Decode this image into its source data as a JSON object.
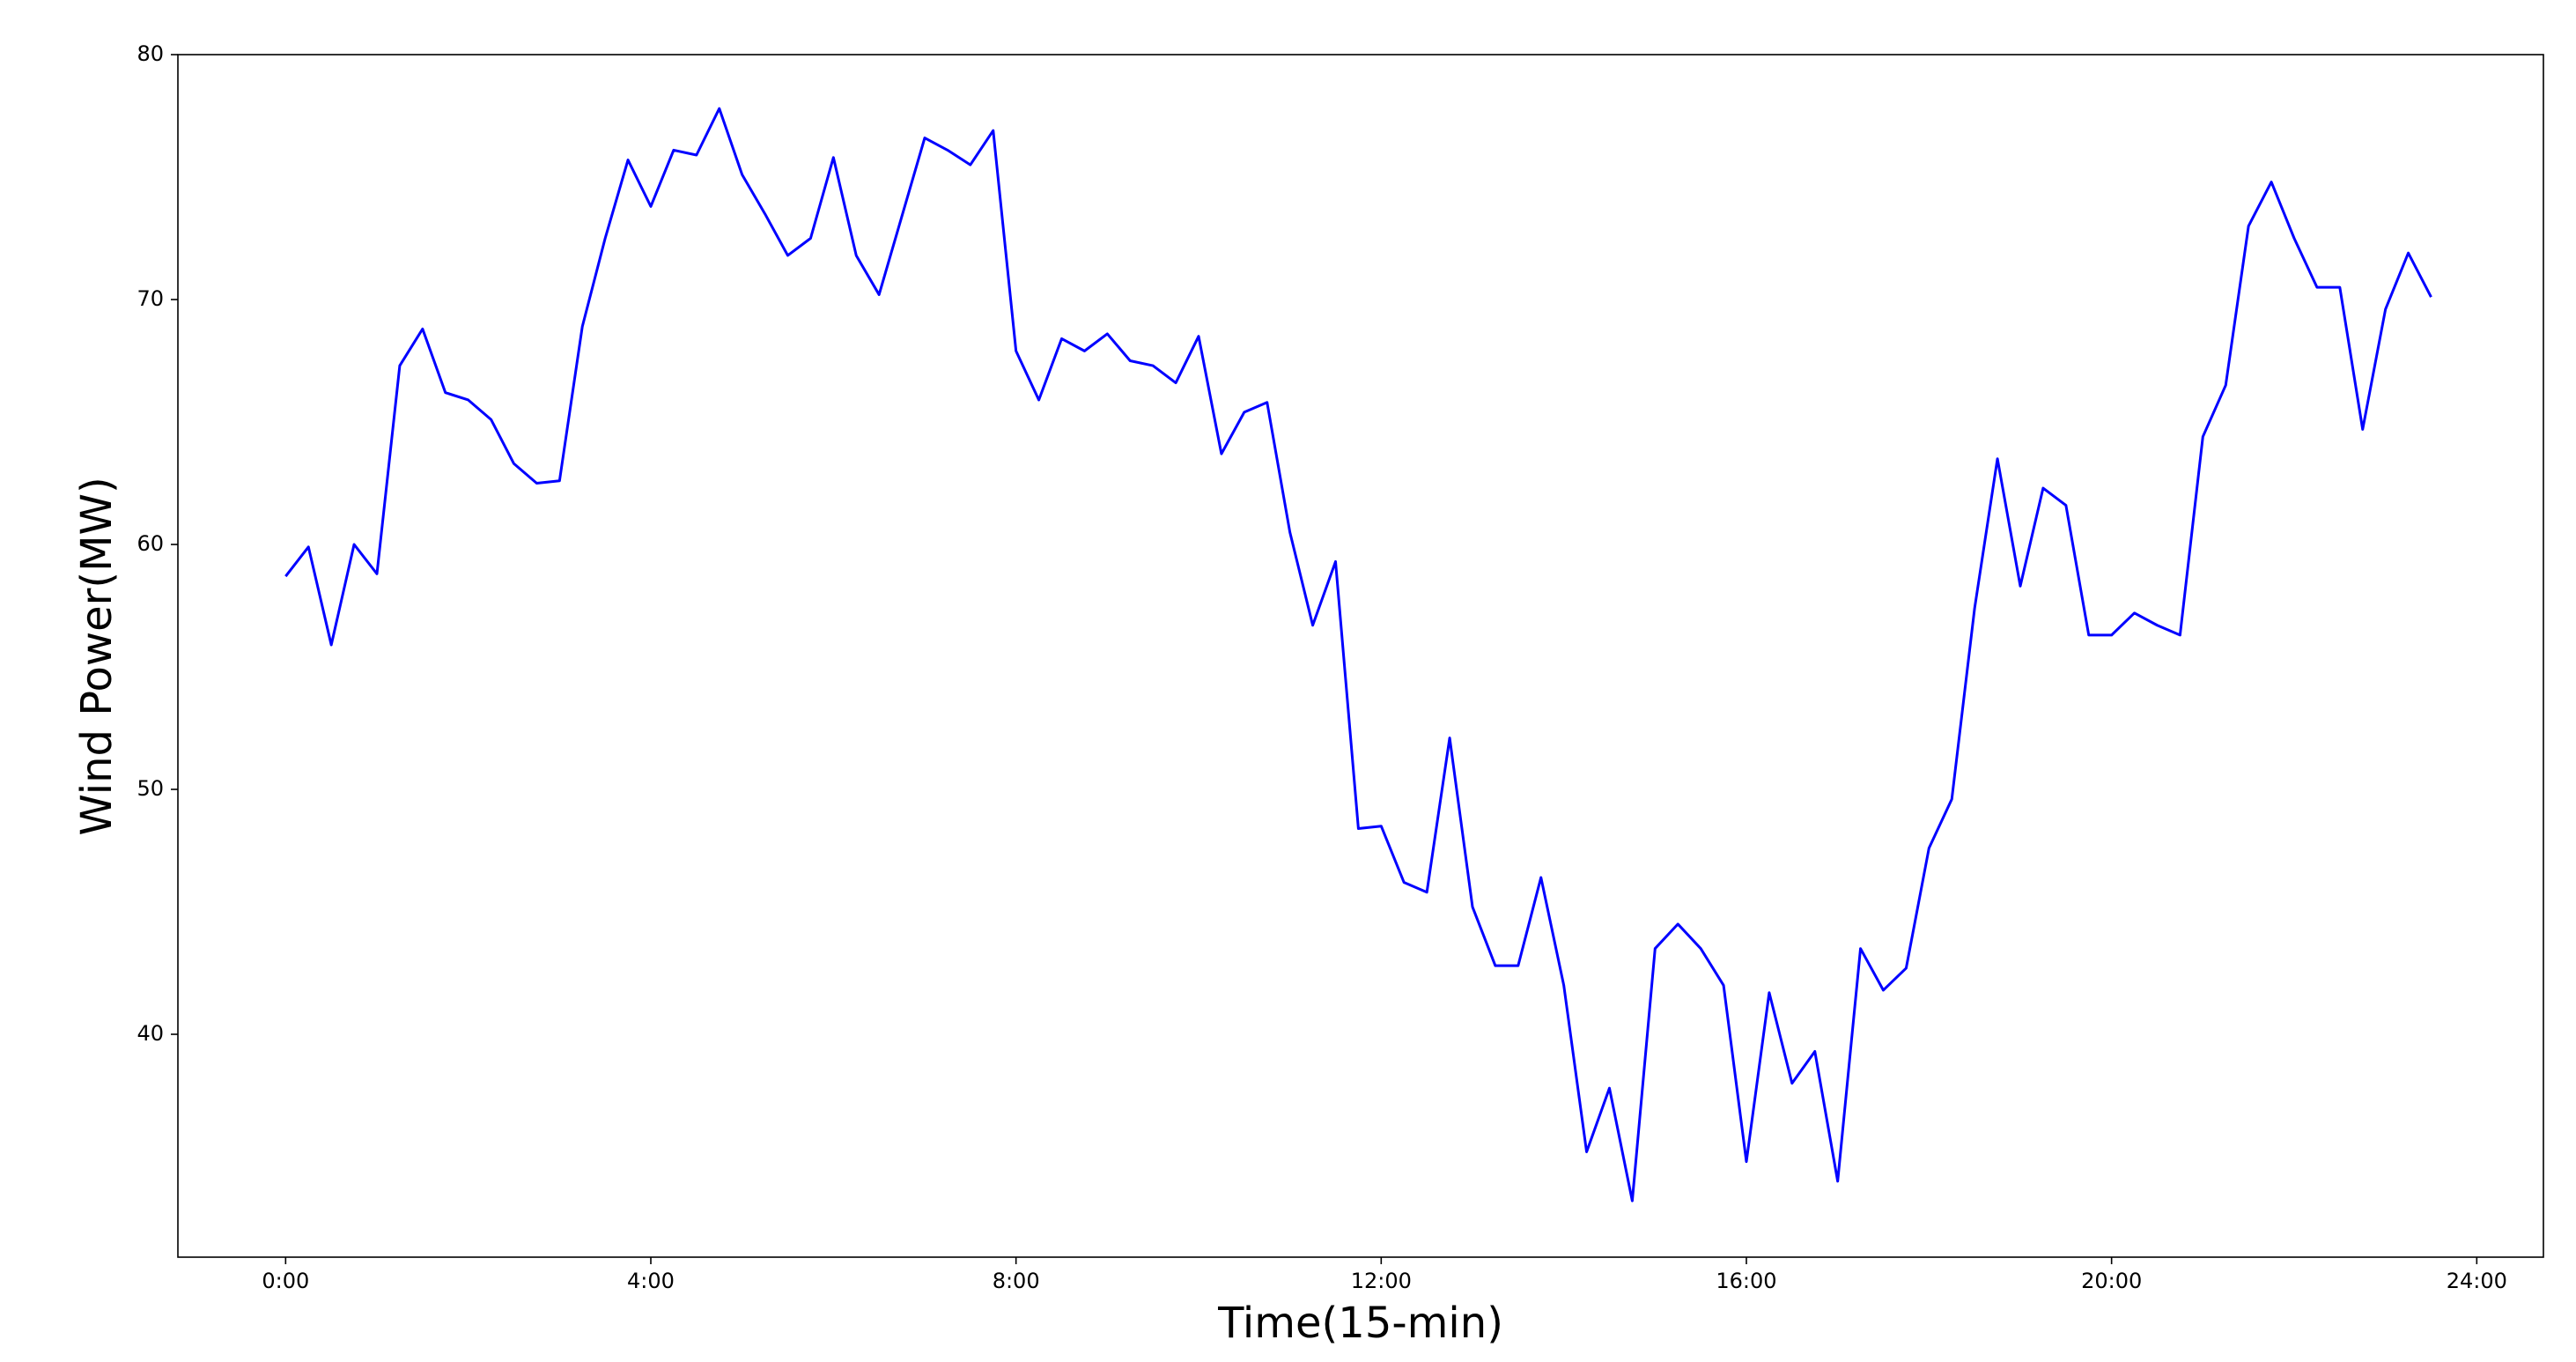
{
  "chart_data": {
    "type": "line",
    "x_label": "Time(15-min)",
    "y_label": "Wind Power(MW)",
    "x": [
      0,
      0.25,
      0.5,
      0.75,
      1,
      1.25,
      1.5,
      1.75,
      2,
      2.25,
      2.5,
      2.75,
      3,
      3.25,
      3.5,
      3.75,
      4,
      4.25,
      4.5,
      4.75,
      5,
      5.25,
      5.5,
      5.75,
      6,
      6.25,
      6.5,
      6.75,
      7,
      7.25,
      7.5,
      7.75,
      8,
      8.25,
      8.5,
      8.75,
      9,
      9.25,
      9.5,
      9.75,
      10,
      10.25,
      10.5,
      10.75,
      11,
      11.25,
      11.5,
      11.75,
      12,
      12.25,
      12.5,
      12.75,
      13,
      13.25,
      13.5,
      13.75,
      14,
      14.25,
      14.5,
      14.75,
      15,
      15.25,
      15.5,
      15.75,
      16,
      16.25,
      16.5,
      16.75,
      17,
      17.25,
      17.5,
      17.75,
      18,
      18.25,
      18.5,
      18.75,
      19,
      19.25,
      19.5,
      19.75,
      20,
      20.25,
      20.5,
      20.75,
      21,
      21.25,
      21.5,
      21.75,
      22,
      22.25,
      22.5,
      22.75,
      23,
      23.25,
      23.5
    ],
    "series": [
      {
        "color": "#0000ff",
        "values": [
          58.7,
          59.9,
          55.9,
          60.0,
          58.8,
          67.3,
          68.8,
          66.2,
          65.9,
          65.1,
          63.3,
          62.5,
          62.6,
          68.9,
          72.5,
          75.7,
          73.8,
          76.1,
          75.9,
          77.8,
          75.1,
          73.5,
          71.8,
          72.5,
          75.8,
          71.8,
          70.2,
          73.4,
          76.6,
          76.1,
          75.5,
          76.9,
          67.9,
          65.9,
          68.4,
          67.9,
          68.6,
          67.5,
          67.3,
          66.6,
          68.5,
          63.7,
          65.4,
          65.8,
          60.5,
          56.7,
          59.3,
          48.4,
          48.5,
          46.2,
          45.8,
          52.1,
          45.2,
          42.8,
          42.8,
          46.4,
          42.0,
          35.2,
          37.8,
          33.2,
          43.5,
          44.5,
          43.5,
          42.0,
          34.8,
          41.7,
          38.0,
          39.3,
          34.0,
          43.5,
          41.8,
          42.7,
          47.6,
          49.6,
          57.4,
          63.5,
          58.3,
          62.3,
          61.6,
          56.3,
          56.3,
          57.2,
          56.7,
          56.3,
          64.4,
          66.5,
          73.0,
          74.8,
          72.5,
          70.5,
          70.5,
          64.7,
          69.6,
          71.9,
          70.1
        ]
      }
    ],
    "xlim": [
      -1.18,
      24.73
    ],
    "xticks": [
      {
        "value": 0,
        "label": "0:00"
      },
      {
        "value": 4,
        "label": "4:00"
      },
      {
        "value": 8,
        "label": "8:00"
      },
      {
        "value": 12,
        "label": "12:00"
      },
      {
        "value": 16,
        "label": "16:00"
      },
      {
        "value": 20,
        "label": "20:00"
      },
      {
        "value": 24,
        "label": "24:00"
      }
    ],
    "ylim": [
      30.9,
      80
    ],
    "yticks": [
      40,
      50,
      60,
      70,
      80
    ],
    "grid": false
  }
}
